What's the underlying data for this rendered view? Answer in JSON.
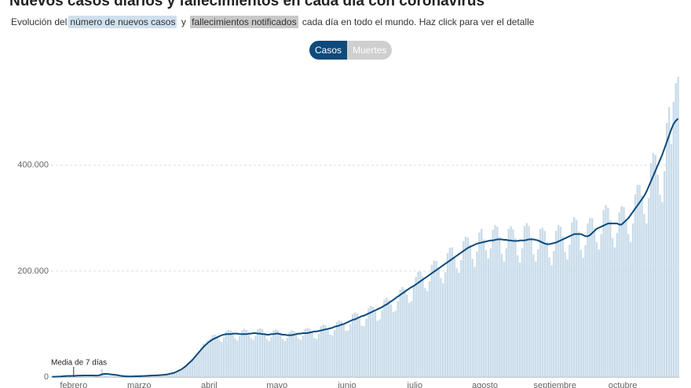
{
  "chart_data": {
    "type": "bar",
    "title": "Nuevos casos diarios y fallecimientos en cada día con coronavirus",
    "subtitle": [
      "Evolución del",
      "número de nuevos casos",
      "y",
      "fallecimientos notificados",
      "cada día en todo el mundo. Haz click para ver el detalle"
    ],
    "buttons": [
      "Casos",
      "Muertes"
    ],
    "annotation": "Media de 7 días",
    "categories": [
      null,
      null,
      null,
      null,
      null,
      null,
      null,
      null,
      null,
      null,
      "febrero",
      null,
      null,
      null,
      null,
      null,
      null,
      null,
      null,
      null,
      null,
      null,
      null,
      null,
      null,
      null,
      null,
      null,
      null,
      null,
      null,
      null,
      null,
      null,
      null,
      null,
      null,
      null,
      null,
      "marzo",
      null,
      null,
      null,
      null,
      null,
      null,
      null,
      null,
      null,
      null,
      null,
      null,
      null,
      null,
      null,
      null,
      null,
      null,
      null,
      null,
      null,
      null,
      null,
      null,
      null,
      null,
      null,
      null,
      null,
      null,
      "abril",
      null,
      null,
      null,
      null,
      null,
      null,
      null,
      null,
      null,
      null,
      null,
      null,
      null,
      null,
      null,
      null,
      null,
      null,
      null,
      null,
      null,
      null,
      null,
      null,
      null,
      null,
      null,
      null,
      null,
      "mayo",
      null,
      null,
      null,
      null,
      null,
      null,
      null,
      null,
      null,
      null,
      null,
      null,
      null,
      null,
      null,
      null,
      null,
      null,
      null,
      null,
      null,
      null,
      null,
      null,
      null,
      null,
      null,
      null,
      null,
      null,
      "junio",
      null,
      null,
      null,
      null,
      null,
      null,
      null,
      null,
      null,
      null,
      null,
      null,
      null,
      null,
      null,
      null,
      null,
      null,
      null,
      null,
      null,
      null,
      null,
      null,
      null,
      null,
      null,
      null,
      null,
      "julio",
      null,
      null,
      null,
      null,
      null,
      null,
      null,
      null,
      null,
      null,
      null,
      null,
      null,
      null,
      null,
      null,
      null,
      null,
      null,
      null,
      null,
      null,
      null,
      null,
      null,
      null,
      null,
      null,
      null,
      null,
      "agosto",
      null,
      null,
      null,
      null,
      null,
      null,
      null,
      null,
      null,
      null,
      null,
      null,
      null,
      null,
      null,
      null,
      null,
      null,
      null,
      null,
      null,
      null,
      null,
      null,
      null,
      null,
      null,
      null,
      null,
      null,
      "septiembre",
      null,
      null,
      null,
      null,
      null,
      null,
      null,
      null,
      null,
      null,
      null,
      null,
      null,
      null,
      null,
      null,
      null,
      null,
      null,
      null,
      null,
      null,
      null,
      null,
      null,
      null,
      null,
      null,
      null,
      "octubre",
      null,
      null,
      null,
      null,
      null,
      null,
      null,
      null,
      null,
      null,
      null,
      null,
      null,
      null,
      null,
      null,
      null,
      null,
      null,
      null,
      null,
      null,
      null,
      null
    ],
    "series": [
      {
        "type": "bar",
        "color": "#c9dcea",
        "values": [
          600,
          700,
          900,
          1100,
          1300,
          1700,
          2000,
          2100,
          2000,
          2300,
          2400,
          2600,
          2900,
          3000,
          3200,
          2800,
          2600,
          3100,
          2700,
          2500,
          2400,
          2000,
          15000,
          5000,
          2600,
          2100,
          2000,
          1900,
          1800,
          500,
          1000,
          600,
          900,
          700,
          1000,
          900,
          1200,
          1400,
          1800,
          1800,
          2000,
          2300,
          2400,
          2300,
          2500,
          2900,
          3500,
          3900,
          3800,
          4300,
          4600,
          5300,
          6500,
          7800,
          8000,
          10000,
          13000,
          15000,
          18000,
          22000,
          27000,
          31000,
          34000,
          40000,
          45000,
          49000,
          56000,
          63000,
          64000,
          70000,
          73000,
          79000,
          80000,
          76000,
          70000,
          66000,
          75000,
          86000,
          89000,
          88000,
          84000,
          73000,
          69000,
          77000,
          88000,
          91000,
          89000,
          83000,
          74000,
          70000,
          78000,
          90000,
          92000,
          90000,
          83000,
          72000,
          68000,
          76000,
          88000,
          90000,
          88000,
          84000,
          72000,
          68000,
          74000,
          85000,
          88000,
          87000,
          84000,
          73000,
          70000,
          78000,
          91000,
          93000,
          91000,
          86000,
          74000,
          72000,
          82000,
          96000,
          99000,
          98000,
          91000,
          80000,
          78000,
          89000,
          104000,
          107000,
          105000,
          98000,
          87000,
          88000,
          100000,
          119000,
          122000,
          120000,
          110000,
          97000,
          96000,
          110000,
          130000,
          135000,
          132000,
          124000,
          106000,
          109000,
          126000,
          146000,
          150000,
          146000,
          137000,
          123000,
          125000,
          143000,
          165000,
          170000,
          166000,
          156000,
          140000,
          143000,
          170000,
          189000,
          199000,
          199000,
          190000,
          168000,
          162000,
          181000,
          212000,
          220000,
          219000,
          207000,
          187000,
          177000,
          198000,
          234000,
          244000,
          245000,
          227000,
          206000,
          197000,
          221000,
          257000,
          265000,
          263000,
          249000,
          223000,
          208000,
          237000,
          273000,
          280000,
          260000,
          240000,
          224000,
          243000,
          278000,
          287000,
          284000,
          265000,
          233000,
          218000,
          243000,
          280000,
          285000,
          279000,
          262000,
          230000,
          216000,
          243000,
          285000,
          291000,
          285000,
          265000,
          232000,
          218000,
          241000,
          280000,
          282000,
          276000,
          255000,
          226000,
          211000,
          238000,
          276000,
          287000,
          284000,
          265000,
          236000,
          222000,
          250000,
          292000,
          302000,
          297000,
          275000,
          240000,
          225000,
          249000,
          290000,
          300000,
          300000,
          282000,
          255000,
          241000,
          270000,
          315000,
          325000,
          320000,
          296000,
          262000,
          245000,
          272000,
          311000,
          323000,
          321000,
          298000,
          270000,
          255000,
          290000,
          345000,
          363000,
          363000,
          343000,
          308000,
          290000,
          338000,
          404000,
          423000,
          419000,
          382000,
          344000,
          330000,
          389000,
          480000,
          510000,
          440000,
          520000,
          555000,
          567000
        ]
      },
      {
        "type": "line",
        "color": "#0e4a7b",
        "values": [
          500,
          600,
          800,
          1000,
          1200,
          1500,
          1800,
          2000,
          2100,
          2200,
          2300,
          2500,
          2700,
          2800,
          3000,
          3000,
          3000,
          3000,
          2900,
          2800,
          2700,
          3500,
          5000,
          6000,
          6000,
          5500,
          5000,
          4500,
          4000,
          3500,
          2500,
          2000,
          1500,
          1300,
          1200,
          1200,
          1300,
          1400,
          1500,
          1700,
          1900,
          2100,
          2300,
          2500,
          2700,
          2900,
          3100,
          3400,
          3700,
          4000,
          4500,
          5000,
          6000,
          7000,
          8000,
          10000,
          12000,
          14000,
          17000,
          20000,
          24000,
          28000,
          32000,
          37000,
          42000,
          47000,
          52000,
          57000,
          61000,
          65000,
          68000,
          71000,
          73000,
          75000,
          77000,
          79000,
          80000,
          81000,
          81000,
          81000,
          82000,
          82000,
          82000,
          81000,
          81000,
          81000,
          81000,
          82000,
          82000,
          83000,
          83000,
          82000,
          82000,
          81000,
          81000,
          80000,
          80000,
          81000,
          81000,
          82000,
          82000,
          81000,
          80000,
          80000,
          79000,
          79000,
          79000,
          80000,
          81000,
          82000,
          82000,
          83000,
          83000,
          83000,
          84000,
          85000,
          86000,
          86000,
          87000,
          88000,
          89000,
          90000,
          91000,
          92000,
          93000,
          95000,
          96000,
          97000,
          99000,
          100000,
          102000,
          104000,
          106000,
          108000,
          109000,
          111000,
          113000,
          115000,
          116000,
          118000,
          120000,
          122000,
          124000,
          126000,
          128000,
          130000,
          132000,
          135000,
          137000,
          140000,
          143000,
          146000,
          149000,
          152000,
          155000,
          158000,
          161000,
          164000,
          167000,
          170000,
          172000,
          175000,
          178000,
          181000,
          184000,
          187000,
          190000,
          193000,
          196000,
          199000,
          202000,
          205000,
          208000,
          211000,
          214000,
          217000,
          220000,
          223000,
          226000,
          229000,
          232000,
          235000,
          238000,
          241000,
          244000,
          246000,
          248000,
          250000,
          252000,
          253000,
          254000,
          255000,
          256000,
          257000,
          258000,
          258000,
          259000,
          260000,
          260000,
          260000,
          259000,
          259000,
          258000,
          258000,
          257000,
          257000,
          257000,
          258000,
          258000,
          258000,
          259000,
          260000,
          260000,
          260000,
          259000,
          258000,
          256000,
          254000,
          252000,
          251000,
          251000,
          252000,
          253000,
          254000,
          256000,
          258000,
          260000,
          262000,
          264000,
          266000,
          268000,
          270000,
          270000,
          270000,
          270000,
          268000,
          266000,
          266000,
          268000,
          272000,
          276000,
          280000,
          282000,
          284000,
          286000,
          288000,
          290000,
          290000,
          290000,
          290000,
          290000,
          288000,
          288000,
          292000,
          296000,
          300000,
          306000,
          312000,
          318000,
          324000,
          330000,
          336000,
          342000,
          350000,
          360000,
          370000,
          380000,
          390000,
          400000,
          410000,
          420000,
          432000,
          444000,
          456000,
          468000,
          478000,
          484000,
          488000
        ]
      }
    ],
    "ylim": [
      0,
      570000
    ],
    "yticks": [
      0,
      {
        "value": 200000,
        "label": "200.000"
      },
      {
        "value": 400000,
        "label": "400.000"
      }
    ],
    "grid": true
  }
}
